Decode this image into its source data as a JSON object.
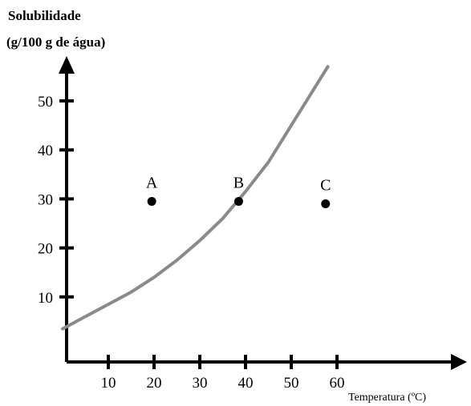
{
  "chart_data": {
    "type": "scatter",
    "ylabel_lines": [
      "Solubilidade",
      "(g/100 g de água)"
    ],
    "xlabel": "Temperatura (ºC)",
    "x_ticks": [
      10,
      20,
      30,
      40,
      50,
      60
    ],
    "y_ticks": [
      10,
      20,
      30,
      40,
      50
    ],
    "xlim": [
      0,
      60
    ],
    "ylim": [
      0,
      55
    ],
    "grid": false,
    "curve": {
      "x": [
        0,
        5,
        10,
        15,
        20,
        25,
        30,
        35,
        40,
        45,
        50,
        55,
        58
      ],
      "y": [
        3.5,
        6,
        8.5,
        11,
        14,
        17.5,
        21.5,
        26,
        31.5,
        37.5,
        45,
        52.5,
        57
      ]
    },
    "points": [
      {
        "label": "A",
        "x": 19.5,
        "y": 29.5
      },
      {
        "label": "B",
        "x": 38.5,
        "y": 29.5
      },
      {
        "label": "C",
        "x": 57.5,
        "y": 29
      }
    ],
    "colors": {
      "axis": "#000000",
      "curve": "#8a8a8a",
      "points": "#000000"
    }
  }
}
